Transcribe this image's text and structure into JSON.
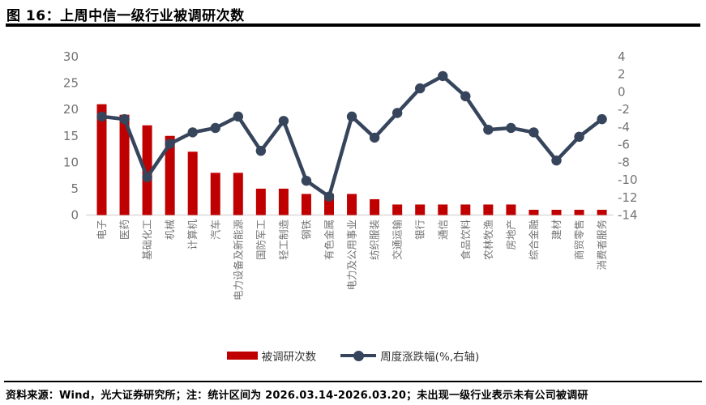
{
  "header": {
    "title": "图 16：上周中信一级行业被调研次数"
  },
  "legend": {
    "items": [
      {
        "label": "被调研次数",
        "swatch": "red-bar"
      },
      {
        "label": "周度涨跌幅(%,右轴)",
        "swatch": "navy-line-dot"
      }
    ]
  },
  "footer": {
    "note": "资料来源：Wind，光大证券研究所；注：统计区间为 2026.03.14-2026.03.20；未出现一级行业表示未有公司被调研"
  },
  "colors": {
    "bar_red": "#C00000",
    "line_navy": "#36455C",
    "tick_gray": "#737373",
    "baseline_gray": "#D9D9D9"
  },
  "chart_data": {
    "type": "bar+line",
    "title": "上周中信一级行业被调研次数",
    "categories": [
      "电子",
      "医药",
      "基础化工",
      "机械",
      "计算机",
      "汽车",
      "电力设备及新能源",
      "国防军工",
      "轻工制造",
      "钢铁",
      "有色金属",
      "电力及公用事业",
      "纺织服装",
      "交通运输",
      "银行",
      "通信",
      "食品饮料",
      "农林牧渔",
      "房地产",
      "综合金融",
      "建材",
      "商贸零售",
      "消费者服务"
    ],
    "series": [
      {
        "name": "被调研次数",
        "chart": "bar",
        "axis": "left",
        "color": "#C00000",
        "values": [
          21,
          19,
          17,
          15,
          12,
          8,
          8,
          5,
          5,
          4,
          4,
          4,
          3,
          2,
          2,
          2,
          2,
          2,
          2,
          1,
          1,
          1,
          1
        ]
      },
      {
        "name": "周度涨跌幅(%,右轴)",
        "chart": "line",
        "axis": "right",
        "color": "#36455C",
        "values": [
          -2.8,
          -3.1,
          -9.7,
          -5.9,
          -4.6,
          -4.1,
          -2.8,
          -6.7,
          -3.3,
          -10.1,
          -11.9,
          -2.8,
          -5.2,
          -2.4,
          0.4,
          1.8,
          -0.5,
          -4.3,
          -4.1,
          -4.6,
          -7.8,
          -5.1,
          -3.1
        ]
      }
    ],
    "left_axis": {
      "label": "",
      "min": 0,
      "max": 30,
      "tick_step": 5,
      "ticks": [
        30,
        25,
        20,
        15,
        10,
        5,
        0
      ]
    },
    "right_axis": {
      "label": "",
      "min": -14,
      "max": 4,
      "tick_step": 2,
      "ticks": [
        4,
        2,
        0,
        -2,
        -4,
        -6,
        -8,
        -10,
        -12,
        -14
      ]
    },
    "grid": false,
    "legend_position": "bottom"
  }
}
